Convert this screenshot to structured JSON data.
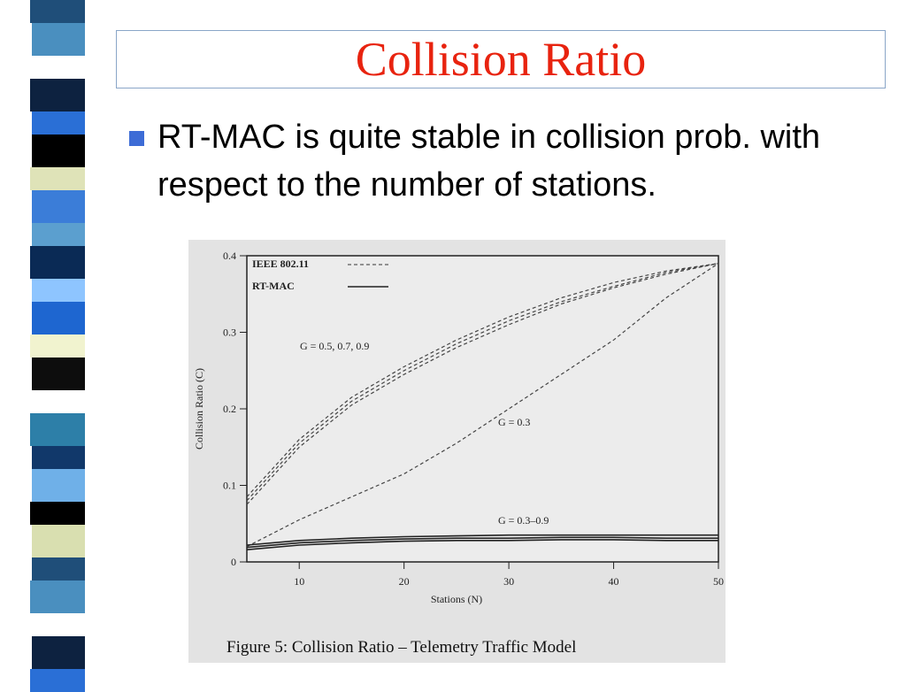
{
  "slide": {
    "title": "Collision Ratio",
    "bullet_text": "RT-MAC is quite stable in collision prob. with respect to the number of stations.",
    "colors": {
      "title": "#e8230f",
      "bullet": "#3d6cd6",
      "title_border": "#8aa6c8"
    }
  },
  "figure": {
    "caption": "Figure 5: Collision Ratio – Telemetry Traffic Model"
  },
  "chart_data": {
    "type": "line",
    "xlabel": "Stations (N)",
    "ylabel": "Collision Ratio (C)",
    "xlim": [
      5,
      50
    ],
    "ylim": [
      0,
      0.4
    ],
    "x_ticks": [
      10,
      20,
      30,
      40,
      50
    ],
    "y_ticks": [
      0,
      0.1,
      0.2,
      0.3,
      0.4
    ],
    "y_tick_labels": [
      "0",
      "0.1",
      "0.2",
      "0.3",
      "0.4"
    ],
    "legend": [
      {
        "label": "IEEE 802.11",
        "style": "dashed"
      },
      {
        "label": "RT-MAC",
        "style": "solid"
      }
    ],
    "legend_position": "top-left",
    "annotations": [
      "G = 0.5, 0.7, 0.9",
      "G = 0.3",
      "G = 0.3–0.9"
    ],
    "x": [
      5,
      10,
      15,
      20,
      25,
      30,
      35,
      40,
      45,
      50
    ],
    "series": [
      {
        "style": "dashed",
        "values": [
          0.085,
          0.16,
          0.215,
          0.255,
          0.29,
          0.32,
          0.345,
          0.365,
          0.38,
          0.39
        ]
      },
      {
        "style": "dashed",
        "values": [
          0.08,
          0.155,
          0.21,
          0.25,
          0.285,
          0.315,
          0.34,
          0.36,
          0.378,
          0.39
        ]
      },
      {
        "style": "dashed",
        "values": [
          0.075,
          0.15,
          0.205,
          0.245,
          0.28,
          0.31,
          0.337,
          0.358,
          0.376,
          0.39
        ]
      },
      {
        "style": "dashed",
        "values": [
          0.02,
          0.055,
          0.085,
          0.115,
          0.155,
          0.2,
          0.245,
          0.29,
          0.345,
          0.39
        ]
      },
      {
        "style": "solid",
        "values": [
          0.022,
          0.028,
          0.031,
          0.033,
          0.034,
          0.035,
          0.035,
          0.035,
          0.035,
          0.035
        ]
      },
      {
        "style": "solid",
        "values": [
          0.019,
          0.025,
          0.028,
          0.03,
          0.031,
          0.031,
          0.032,
          0.032,
          0.031,
          0.031
        ]
      },
      {
        "style": "solid",
        "values": [
          0.016,
          0.022,
          0.025,
          0.027,
          0.028,
          0.028,
          0.029,
          0.029,
          0.028,
          0.028
        ]
      }
    ]
  }
}
